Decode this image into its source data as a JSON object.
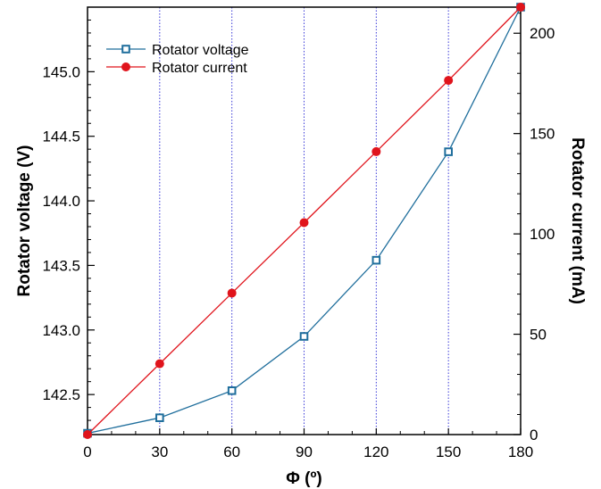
{
  "chart_data": {
    "type": "line",
    "title": "",
    "xlabel": "Φ (º)",
    "ylabel_left": "Rotator voltage (V)",
    "ylabel_right": "Rotator current (mA)",
    "x": [
      0,
      30,
      60,
      90,
      120,
      150,
      180
    ],
    "x_ticks": [
      "0",
      "30",
      "60",
      "90",
      "120",
      "150",
      "180"
    ],
    "xlim": [
      0,
      180
    ],
    "ylim_left": [
      142.19,
      145.5
    ],
    "ylim_right": [
      0,
      213
    ],
    "y_ticks_left": [
      "142.5",
      "143.0",
      "143.5",
      "144.0",
      "144.5",
      "145.0"
    ],
    "y_ticks_right": [
      "0",
      "50",
      "100",
      "150",
      "200"
    ],
    "grid": "vertical dotted at x ticks",
    "legend_position": "top-left",
    "series": [
      {
        "name": "Rotator voltage",
        "axis": "left",
        "marker": "open-square",
        "color": "#1f6e9c",
        "values": [
          142.2,
          142.32,
          142.53,
          142.95,
          143.54,
          144.38,
          145.5
        ]
      },
      {
        "name": "Rotator current",
        "axis": "right",
        "marker": "filled-circle",
        "color": "#e0141c",
        "values": [
          0,
          35.3,
          70.5,
          105.6,
          141.0,
          176.5,
          213
        ]
      }
    ]
  }
}
